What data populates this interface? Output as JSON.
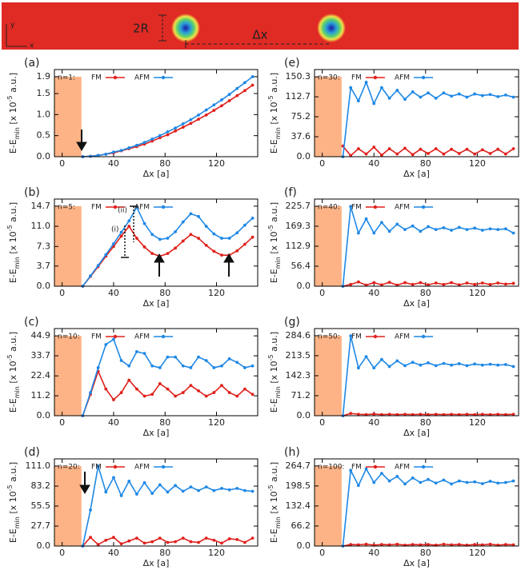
{
  "schematic": {
    "height_label": "2R",
    "distance_label": "Δx",
    "y_axis_label": "y",
    "x_axis_label": "x"
  },
  "chart_data": [
    {
      "type": "line",
      "panel": "(a)",
      "annotation": "n=1:",
      "xlabel": "Δx [a]",
      "ylabel": [
        "E-E",
        "min",
        " [x 10",
        "-5",
        " a.u.]"
      ],
      "x": [
        16,
        22,
        28,
        34,
        40,
        46,
        52,
        58,
        64,
        70,
        76,
        82,
        88,
        94,
        100,
        106,
        112,
        118,
        124,
        130,
        136,
        142,
        148
      ],
      "series": [
        {
          "name": "FM",
          "color": "#e0201b",
          "values": [
            0,
            0.01,
            0.03,
            0.06,
            0.09,
            0.14,
            0.19,
            0.24,
            0.3,
            0.37,
            0.45,
            0.52,
            0.61,
            0.7,
            0.79,
            0.89,
            0.99,
            1.1,
            1.21,
            1.33,
            1.45,
            1.57,
            1.7
          ]
        },
        {
          "name": "AFM",
          "color": "#1e88e5",
          "values": [
            0,
            0.01,
            0.03,
            0.06,
            0.11,
            0.15,
            0.21,
            0.27,
            0.34,
            0.42,
            0.5,
            0.59,
            0.68,
            0.78,
            0.88,
            0.99,
            1.11,
            1.23,
            1.35,
            1.48,
            1.62,
            1.76,
            1.9
          ]
        }
      ],
      "xlim": [
        -6,
        152
      ],
      "xticks": [
        0,
        40,
        80,
        120
      ],
      "ylim": [
        0,
        2.07
      ],
      "yticks": [
        {
          "value": 0,
          "label": "0.0"
        },
        0.5,
        {
          "value": 1,
          "label": "1.0"
        },
        1.5,
        1.9
      ],
      "shade": {
        "x": [
          -6,
          15
        ],
        "y": [
          0,
          1.9
        ],
        "color": "#fdb386"
      }
    },
    {
      "type": "line",
      "panel": "(b)",
      "annotation": "n=5:",
      "annotations": [
        "(i)",
        "(ii)"
      ],
      "xlabel": "Δx [a]",
      "ylabel": [
        "E-E",
        "min",
        " [x 10",
        "-5",
        " a.u.]"
      ],
      "x": [
        16,
        22,
        28,
        34,
        40,
        46,
        52,
        58,
        64,
        70,
        76,
        82,
        88,
        94,
        100,
        106,
        112,
        118,
        124,
        130,
        136,
        142,
        148
      ],
      "series": [
        {
          "name": "FM",
          "color": "#e0201b",
          "values": [
            0,
            1.8,
            3.6,
            5.5,
            7.3,
            9.2,
            11.0,
            8.8,
            7.2,
            6.0,
            5.5,
            6.0,
            7.0,
            8.3,
            9.5,
            8.8,
            7.5,
            6.4,
            5.7,
            5.7,
            6.5,
            7.7,
            9.0
          ]
        },
        {
          "name": "AFM",
          "color": "#1e88e5",
          "values": [
            0,
            1.9,
            3.8,
            5.8,
            7.8,
            9.9,
            12.0,
            14.5,
            11.5,
            9.5,
            8.6,
            8.8,
            10.0,
            11.8,
            13.3,
            12.8,
            11.0,
            9.6,
            8.8,
            8.8,
            9.8,
            11.2,
            12.5
          ]
        }
      ],
      "xlim": [
        -6,
        152
      ],
      "xticks": [
        0,
        40,
        80,
        120
      ],
      "ylim": [
        0,
        16
      ],
      "yticks": [
        {
          "value": 0,
          "label": "0.0"
        },
        3.7,
        7.3,
        {
          "value": 11,
          "label": "11.0"
        },
        14.7
      ],
      "shade": {
        "x": [
          -6,
          15
        ],
        "y": [
          0,
          14.7
        ],
        "color": "#fdb386"
      }
    },
    {
      "type": "line",
      "panel": "(c)",
      "annotation": "n=10:",
      "xlabel": "Δx [a]",
      "ylabel": [
        "E-E",
        "min",
        " [x 10",
        "-5",
        " a.u.]"
      ],
      "x": [
        16,
        22,
        28,
        34,
        40,
        46,
        52,
        58,
        64,
        70,
        76,
        82,
        88,
        94,
        100,
        106,
        112,
        118,
        124,
        130,
        136,
        142,
        148
      ],
      "series": [
        {
          "name": "FM",
          "color": "#e0201b",
          "values": [
            0,
            12,
            25,
            15,
            9,
            13,
            20,
            15,
            11,
            12,
            18,
            15,
            11,
            13,
            17,
            14,
            11,
            13,
            17,
            13,
            11,
            15,
            12
          ]
        },
        {
          "name": "AFM",
          "color": "#1e88e5",
          "values": [
            0,
            13,
            27,
            40,
            43,
            31,
            28,
            36,
            35,
            28,
            27,
            33,
            33,
            28,
            27,
            33,
            31,
            27,
            28,
            32,
            30,
            27,
            28
          ]
        }
      ],
      "xlim": [
        -6,
        152
      ],
      "xticks": [
        0,
        40,
        80,
        120
      ],
      "ylim": [
        0,
        49
      ],
      "yticks": [
        {
          "value": 0,
          "label": "0.0"
        },
        11.2,
        22.4,
        33.7,
        44.9
      ],
      "shade": {
        "x": [
          -6,
          15
        ],
        "y": [
          0,
          44.9
        ],
        "color": "#fdb386"
      }
    },
    {
      "type": "line",
      "panel": "(d)",
      "annotation": "n=20:",
      "xlabel": "Δx [a]",
      "ylabel": [
        "E-E",
        "min",
        " [x 10",
        "-5",
        " a.u.]"
      ],
      "x": [
        16,
        22,
        28,
        34,
        40,
        46,
        52,
        58,
        64,
        70,
        76,
        82,
        88,
        94,
        100,
        106,
        112,
        118,
        124,
        130,
        136,
        142,
        148
      ],
      "series": [
        {
          "name": "FM",
          "color": "#e0201b",
          "values": [
            0,
            12,
            2,
            8,
            12,
            3,
            7,
            11,
            4,
            6,
            11,
            5,
            6,
            11,
            6,
            5,
            11,
            8,
            4,
            10,
            9,
            5,
            11
          ]
        },
        {
          "name": "AFM",
          "color": "#1e88e5",
          "values": [
            0,
            50,
            111,
            75,
            95,
            70,
            90,
            72,
            88,
            73,
            85,
            75,
            84,
            76,
            82,
            77,
            82,
            77,
            80,
            78,
            80,
            77,
            76
          ]
        }
      ],
      "xlim": [
        -6,
        152
      ],
      "xticks": [
        0,
        40,
        80,
        120
      ],
      "ylim": [
        0,
        121
      ],
      "yticks": [
        {
          "value": 0,
          "label": "0.0"
        },
        27.7,
        55.5,
        83.2,
        {
          "value": 111,
          "label": "111.0"
        }
      ],
      "shade": {
        "x": [
          -6,
          15
        ],
        "y": [
          0,
          111
        ],
        "color": "#fdb386"
      }
    },
    {
      "type": "line",
      "panel": "(e)",
      "annotation": "n=30:",
      "xlabel": "Δx [a]",
      "ylabel": [
        "E-E",
        "min",
        " [x 10",
        "-5",
        " a.u.]"
      ],
      "x": [
        16,
        22,
        28,
        34,
        40,
        46,
        52,
        58,
        64,
        70,
        76,
        82,
        88,
        94,
        100,
        106,
        112,
        118,
        124,
        130,
        136,
        142,
        148
      ],
      "series": [
        {
          "name": "FM",
          "color": "#e0201b",
          "values": [
            20,
            2,
            15,
            5,
            18,
            3,
            15,
            5,
            16,
            4,
            14,
            6,
            15,
            5,
            14,
            6,
            14,
            5,
            13,
            6,
            14,
            5,
            15
          ]
        },
        {
          "name": "AFM",
          "color": "#1e88e5",
          "values": [
            0,
            130,
            105,
            140,
            100,
            130,
            110,
            125,
            108,
            122,
            112,
            120,
            110,
            120,
            114,
            118,
            112,
            118,
            115,
            117,
            113,
            116,
            112
          ]
        }
      ],
      "xlim": [
        -6,
        152
      ],
      "xticks": [
        0,
        40,
        80,
        120
      ],
      "ylim": [
        0,
        164
      ],
      "yticks": [
        {
          "value": 0,
          "label": "0.0"
        },
        37.6,
        75.2,
        112.7,
        150.3
      ],
      "shade": {
        "x": [
          -6,
          15
        ],
        "y": [
          0,
          150.3
        ],
        "color": "#fdb386"
      }
    },
    {
      "type": "line",
      "panel": "(f)",
      "annotation": "n=40:",
      "xlabel": "Δx [a]",
      "ylabel": [
        "E-E",
        "min",
        " [x 10",
        "-5",
        " a.u.]"
      ],
      "x": [
        16,
        22,
        28,
        34,
        40,
        46,
        52,
        58,
        64,
        70,
        76,
        82,
        88,
        94,
        100,
        106,
        112,
        118,
        124,
        130,
        136,
        142,
        148
      ],
      "series": [
        {
          "name": "FM",
          "color": "#e0201b",
          "values": [
            0,
            5,
            12,
            3,
            10,
            4,
            11,
            3,
            10,
            5,
            10,
            4,
            9,
            5,
            10,
            4,
            9,
            5,
            9,
            5,
            9,
            6,
            8
          ]
        },
        {
          "name": "AFM",
          "color": "#1e88e5",
          "values": [
            0,
            225,
            150,
            190,
            150,
            180,
            155,
            175,
            160,
            170,
            155,
            168,
            160,
            165,
            158,
            166,
            160,
            164,
            158,
            162,
            160,
            162,
            150
          ]
        }
      ],
      "xlim": [
        -6,
        152
      ],
      "xticks": [
        0,
        40,
        80,
        120
      ],
      "ylim": [
        0,
        246
      ],
      "yticks": [
        {
          "value": 0,
          "label": "0.0"
        },
        56.4,
        112.9,
        169.3,
        225.7
      ],
      "shade": {
        "x": [
          -6,
          15
        ],
        "y": [
          0,
          225.7
        ],
        "color": "#fdb386"
      }
    },
    {
      "type": "line",
      "panel": "(g)",
      "annotation": "n=50:",
      "xlabel": "Δx [a]",
      "ylabel": [
        "E-E",
        "min",
        " [x 10",
        "-5",
        " a.u.]"
      ],
      "x": [
        16,
        22,
        28,
        34,
        40,
        46,
        52,
        58,
        64,
        70,
        76,
        82,
        88,
        94,
        100,
        106,
        112,
        118,
        124,
        130,
        136,
        142,
        148
      ],
      "series": [
        {
          "name": "FM",
          "color": "#e0201b",
          "values": [
            0,
            8,
            5,
            4,
            6,
            4,
            5,
            4,
            5,
            4,
            5,
            4,
            5,
            4,
            5,
            4,
            5,
            4,
            5,
            4,
            5,
            4,
            5
          ]
        },
        {
          "name": "AFM",
          "color": "#1e88e5",
          "values": [
            0,
            284,
            170,
            210,
            170,
            200,
            175,
            195,
            178,
            190,
            180,
            188,
            178,
            186,
            180,
            185,
            178,
            184,
            180,
            183,
            180,
            182,
            175
          ]
        }
      ],
      "xlim": [
        -6,
        152
      ],
      "xticks": [
        0,
        40,
        80,
        120
      ],
      "ylim": [
        0,
        310
      ],
      "yticks": [
        {
          "value": 0,
          "label": "0.0"
        },
        71.2,
        142.3,
        213.5,
        284.6
      ],
      "shade": {
        "x": [
          -6,
          15
        ],
        "y": [
          0,
          284.6
        ],
        "color": "#fdb386"
      }
    },
    {
      "type": "line",
      "panel": "(h)",
      "annotation": "n=100:",
      "xlabel": "Δx [a]",
      "ylabel": [
        "E-E",
        "min",
        " [x 10",
        "-5",
        " a.u.]"
      ],
      "x": [
        16,
        22,
        28,
        34,
        40,
        46,
        52,
        58,
        64,
        70,
        76,
        82,
        88,
        94,
        100,
        106,
        112,
        118,
        124,
        130,
        136,
        142,
        148
      ],
      "series": [
        {
          "name": "FM",
          "color": "#e0201b",
          "values": [
            0,
            5,
            4,
            6,
            3,
            5,
            4,
            6,
            3,
            5,
            4,
            5,
            3,
            6,
            4,
            5,
            3,
            5,
            4,
            6,
            3,
            5,
            4
          ]
        },
        {
          "name": "AFM",
          "color": "#1e88e5",
          "values": [
            0,
            250,
            200,
            255,
            210,
            240,
            215,
            230,
            205,
            225,
            210,
            220,
            208,
            218,
            205,
            215,
            210,
            212,
            206,
            214,
            208,
            210,
            215
          ]
        }
      ],
      "xlim": [
        -6,
        152
      ],
      "xticks": [
        0,
        40,
        80,
        120
      ],
      "ylim": [
        0,
        288
      ],
      "yticks": [
        {
          "value": 0,
          "label": "0.0"
        },
        66.2,
        132.4,
        198.5,
        264.7
      ],
      "shade": {
        "x": [
          -6,
          15
        ],
        "y": [
          0,
          264.7
        ],
        "color": "#fdb386"
      }
    }
  ]
}
